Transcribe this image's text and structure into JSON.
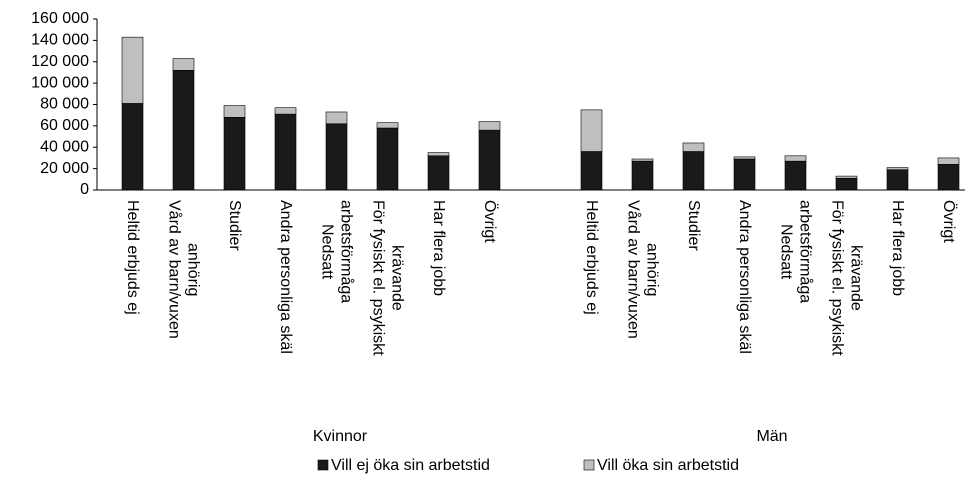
{
  "chart_data": {
    "type": "stacked_bar",
    "categories": [
      "Heltid erbjuds ej",
      "Vård av barn/vuxen\nanhörig",
      "Studier",
      "Andra personliga skäl",
      "Nedsatt\narbetsförmåga",
      "För fysiskt el. psykiskt\nkrävande",
      "Har flera jobb",
      "Övrigt",
      null,
      "Heltid erbjuds ej",
      "Vård av barn/vuxen\nanhörig",
      "Studier",
      "Andra personliga skäl",
      "Nedsatt\narbetsförmåga",
      "För fysiskt el. psykiskt\nkrävande",
      "Har flera jobb",
      "Övrigt"
    ],
    "groups": [
      "Kvinnor",
      "Män"
    ],
    "series": [
      {
        "name": "Vill ej öka sin arbetstid",
        "color": "#1a1a1a",
        "values": [
          81000,
          112000,
          68000,
          71000,
          62000,
          58000,
          32000,
          56000,
          null,
          36000,
          27000,
          36000,
          29000,
          27000,
          11000,
          19000,
          24000
        ]
      },
      {
        "name": "Vill öka sin arbetstid",
        "color": "#bfbfbf",
        "values": [
          62000,
          11000,
          11000,
          6000,
          11000,
          5000,
          3000,
          8000,
          null,
          39000,
          2000,
          8000,
          2000,
          5000,
          2000,
          2000,
          6000
        ]
      }
    ],
    "ylim": [
      0,
      160000
    ],
    "yticks": [
      0,
      {
        "value": 20000,
        "label": "20 000"
      },
      {
        "value": 40000,
        "label": "40 000"
      },
      {
        "value": 60000,
        "label": "60 000"
      },
      {
        "value": 80000,
        "label": "80 000"
      },
      {
        "value": 100000,
        "label": "100 000"
      },
      {
        "value": 120000,
        "label": "120 000"
      },
      {
        "value": 140000,
        "label": "140 000"
      },
      {
        "value": 160000,
        "label": "160 000"
      }
    ],
    "grid": false,
    "legend": "bottom"
  }
}
